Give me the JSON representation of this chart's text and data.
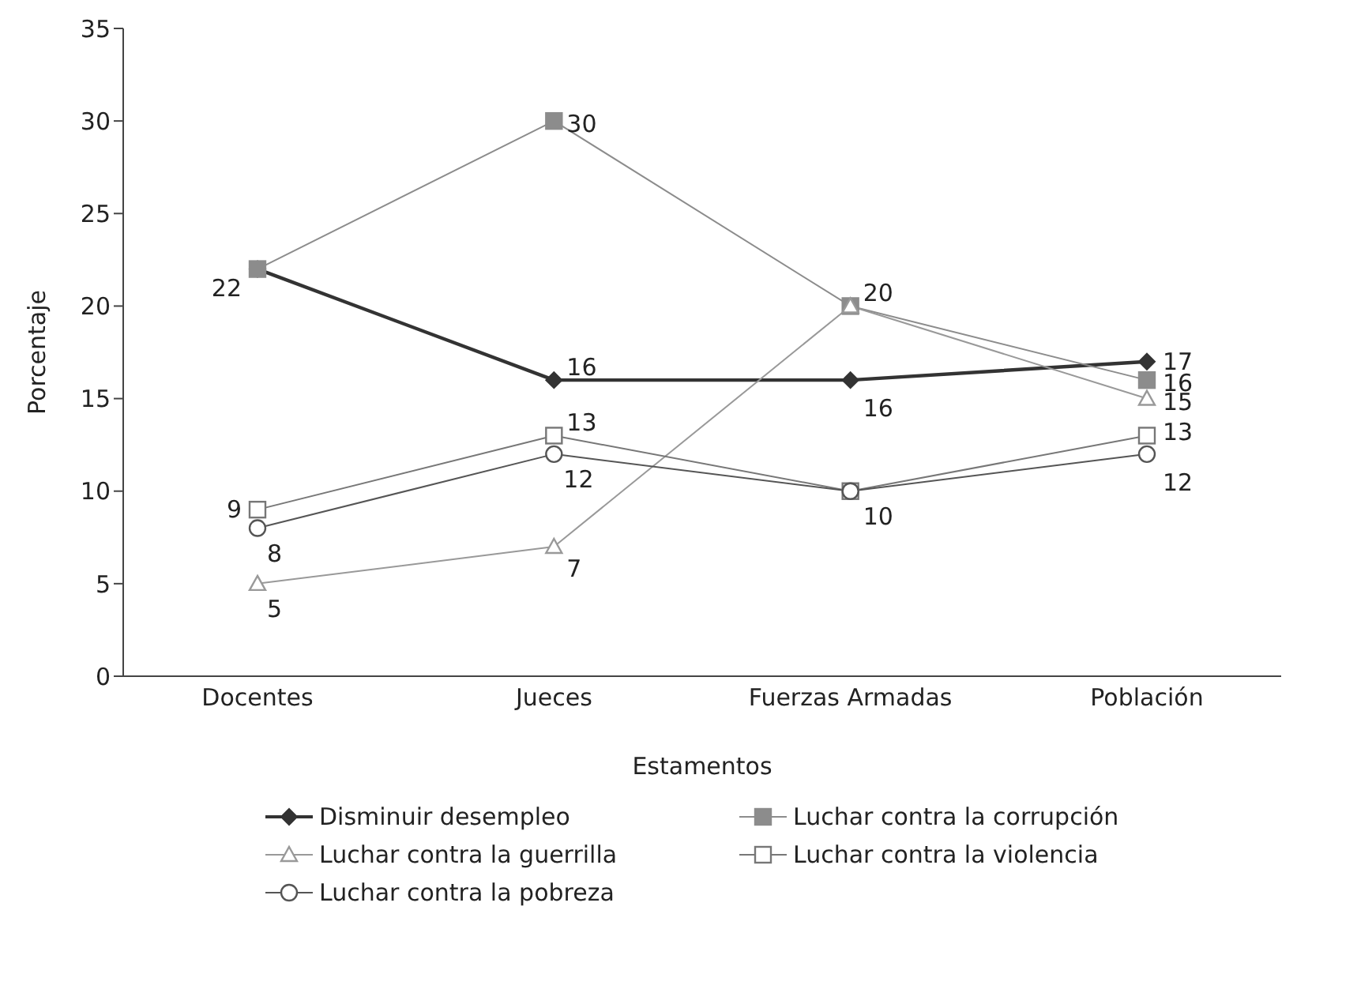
{
  "chart_data": {
    "type": "line",
    "xlabel": "Estamentos",
    "ylabel": "Porcentaje",
    "categories": [
      "Docentes",
      "Jueces",
      "Fuerzas Armadas",
      "Población"
    ],
    "ylim": [
      0,
      35
    ],
    "yticks": [
      0,
      5,
      10,
      15,
      20,
      25,
      30,
      35
    ],
    "grid": false,
    "legend": "bottom",
    "series": [
      {
        "name": "Disminuir desempleo",
        "color": "#333333",
        "marker": "diamond",
        "values": [
          22,
          16,
          16,
          17
        ],
        "value_labels": [
          "22",
          "16",
          "16",
          "17"
        ]
      },
      {
        "name": "Luchar contra la corrupción",
        "color": "#8c8c8c",
        "marker": "square",
        "values": [
          22,
          30,
          20,
          16
        ],
        "value_labels": [
          null,
          "30",
          "20",
          "16"
        ]
      },
      {
        "name": "Luchar contra la guerrilla",
        "color": "#999999",
        "marker": "triangle",
        "values": [
          5,
          7,
          20,
          15
        ],
        "value_labels": [
          "5",
          "7",
          null,
          "15"
        ]
      },
      {
        "name": "Luchar contra la violencia",
        "color": "#777777",
        "marker": "square",
        "values": [
          9,
          13,
          10,
          13
        ],
        "value_labels": [
          "9",
          "13",
          "10",
          "13"
        ]
      },
      {
        "name": "Luchar contra la pobreza",
        "color": "#555555",
        "marker": "circle",
        "values": [
          8,
          12,
          10,
          12
        ],
        "value_labels": [
          "8",
          "12",
          null,
          "12"
        ]
      }
    ]
  }
}
